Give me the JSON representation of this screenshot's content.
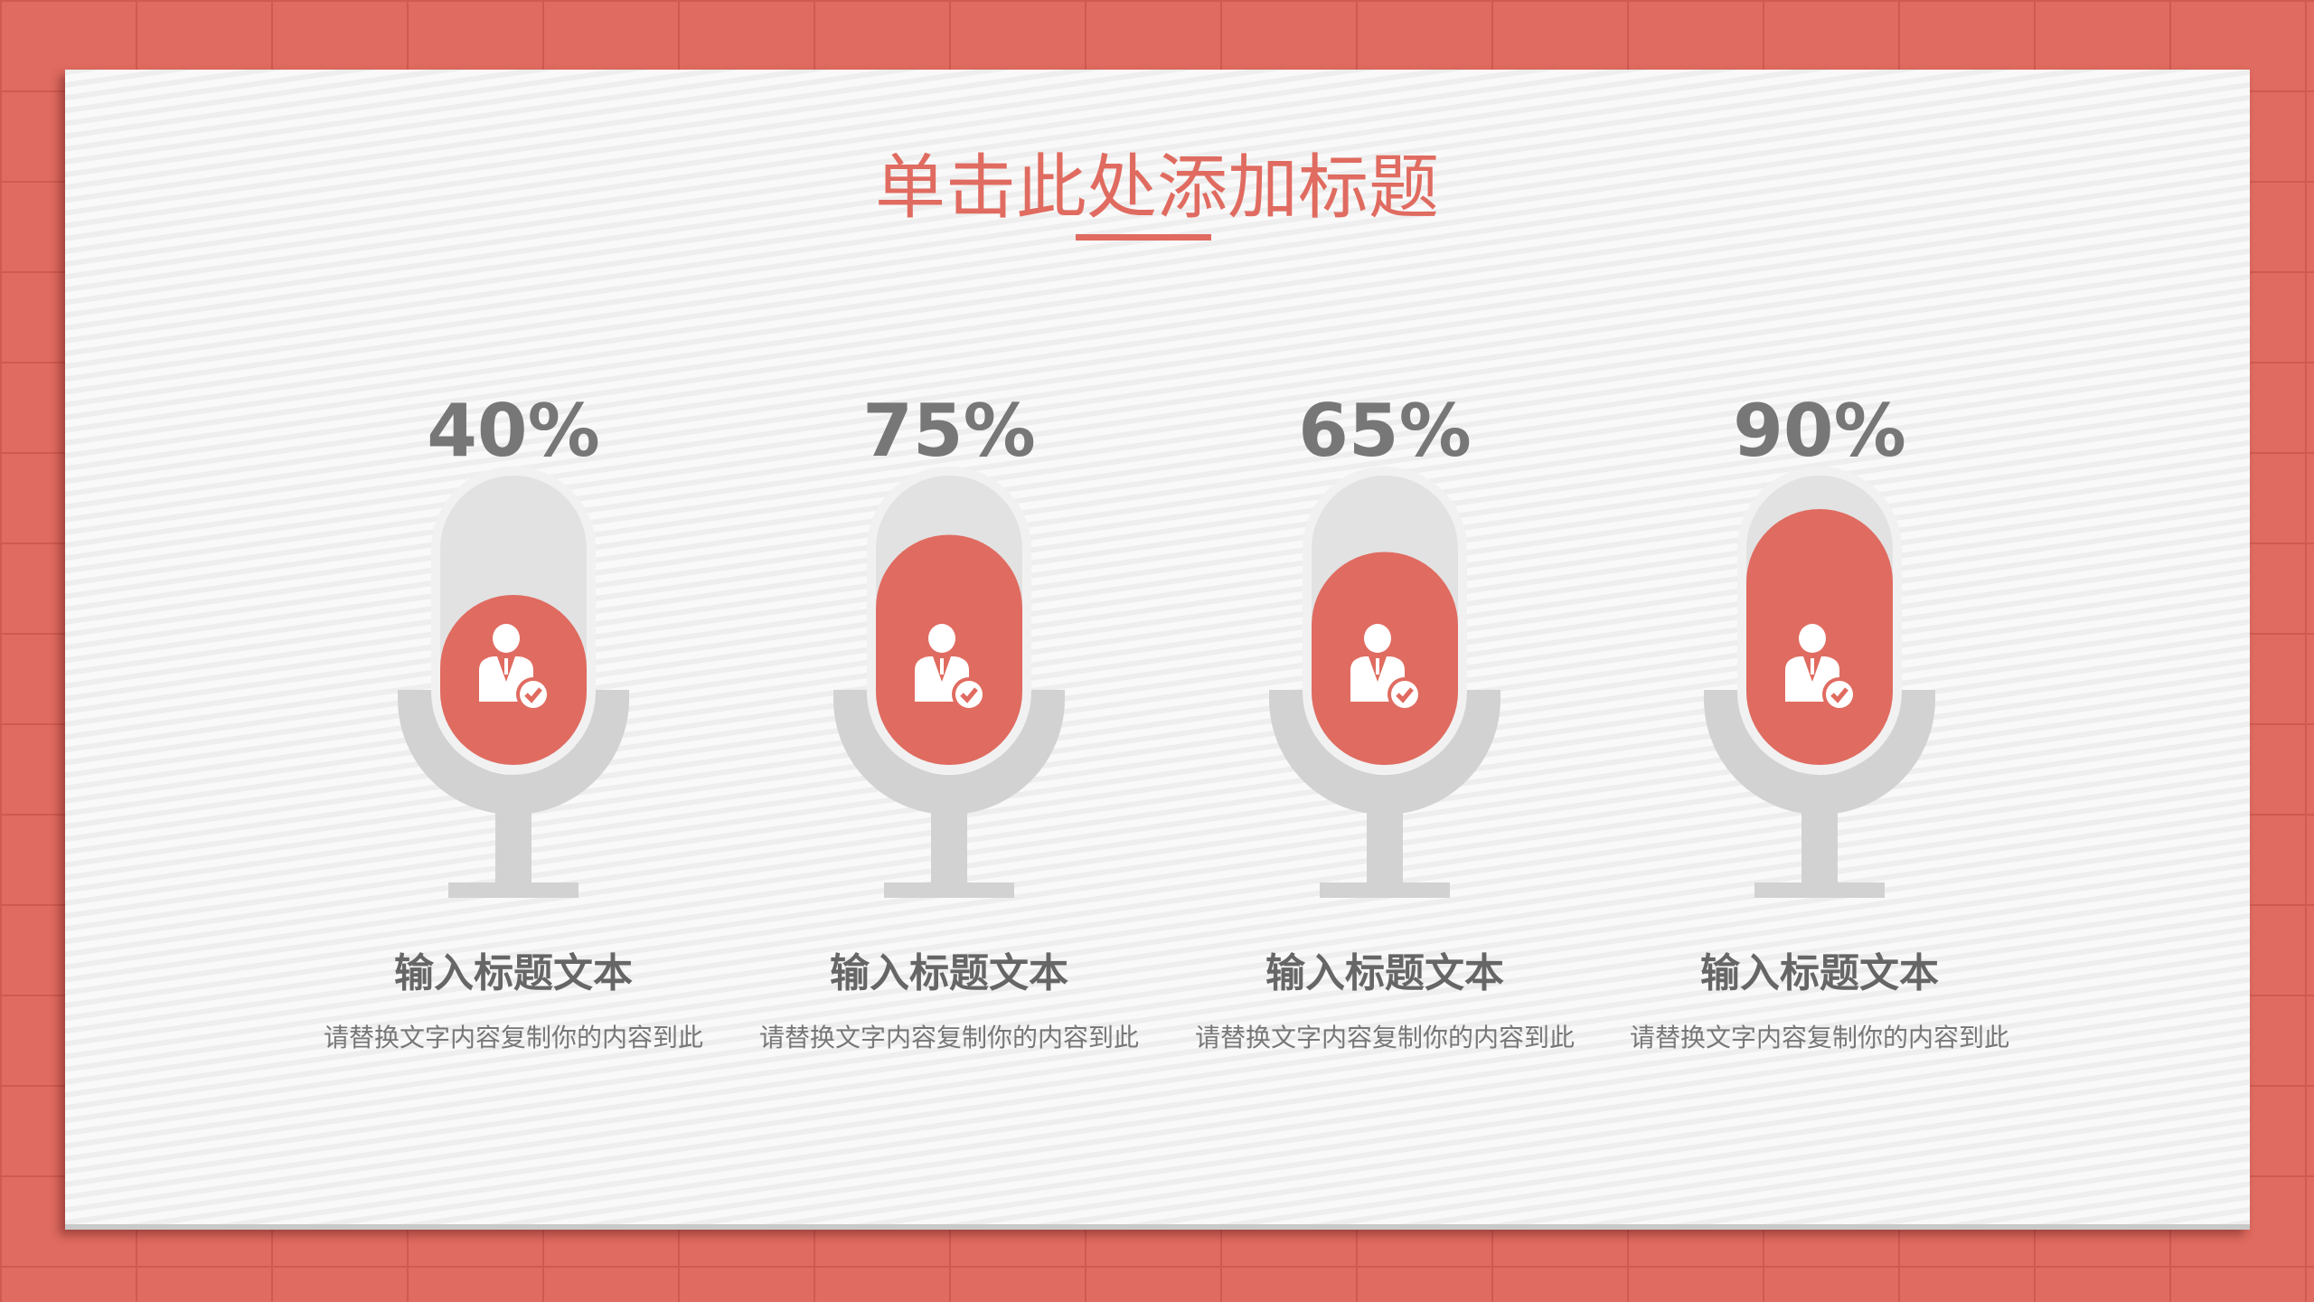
{
  "title": "单击此处添加标题",
  "accent_color": "#e06b60",
  "items": [
    {
      "percent": 40,
      "percent_label": "40%",
      "icon": "businessman-check-icon",
      "heading": "输入标题文本",
      "desc": "请替换文字内容复制你的内容到此"
    },
    {
      "percent": 75,
      "percent_label": "75%",
      "icon": "businessman-check-icon",
      "heading": "输入标题文本",
      "desc": "请替换文字内容复制你的内容到此"
    },
    {
      "percent": 65,
      "percent_label": "65%",
      "icon": "businessman-check-icon",
      "heading": "输入标题文本",
      "desc": "请替换文字内容复制你的内容到此"
    },
    {
      "percent": 90,
      "percent_label": "90%",
      "icon": "businessman-check-icon",
      "heading": "输入标题文本",
      "desc": "请替换文字内容复制你的内容到此"
    }
  ]
}
